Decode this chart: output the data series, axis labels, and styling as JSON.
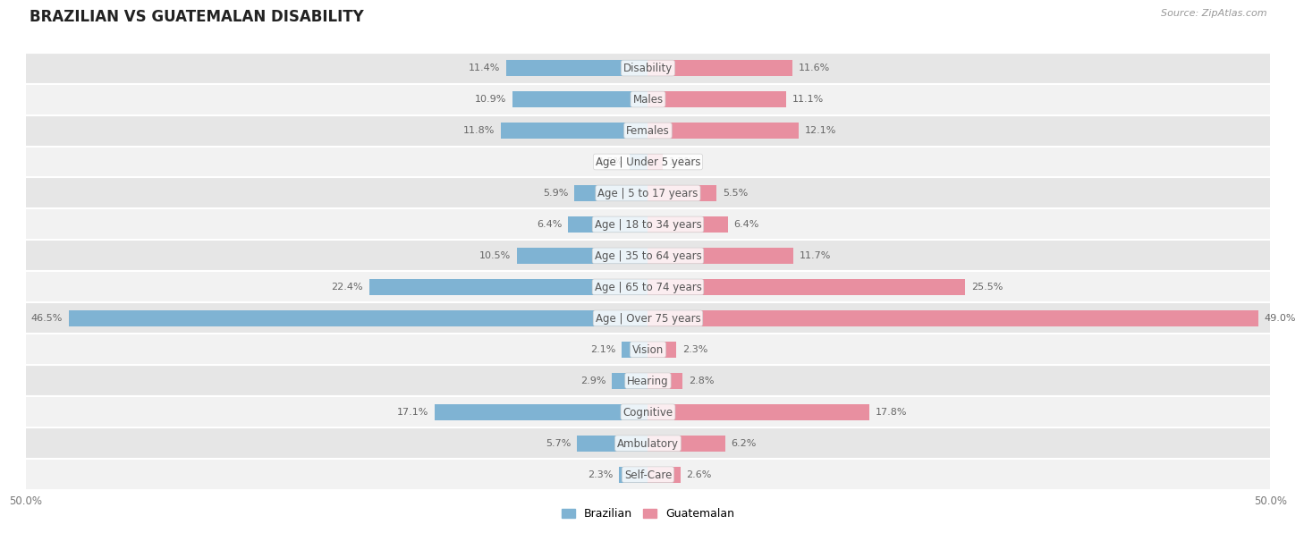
{
  "title": "BRAZILIAN VS GUATEMALAN DISABILITY",
  "source": "Source: ZipAtlas.com",
  "categories": [
    "Disability",
    "Males",
    "Females",
    "Age | Under 5 years",
    "Age | 5 to 17 years",
    "Age | 18 to 34 years",
    "Age | 35 to 64 years",
    "Age | 65 to 74 years",
    "Age | Over 75 years",
    "Vision",
    "Hearing",
    "Cognitive",
    "Ambulatory",
    "Self-Care"
  ],
  "brazilian": [
    11.4,
    10.9,
    11.8,
    1.5,
    5.9,
    6.4,
    10.5,
    22.4,
    46.5,
    2.1,
    2.9,
    17.1,
    5.7,
    2.3
  ],
  "guatemalan": [
    11.6,
    11.1,
    12.1,
    1.2,
    5.5,
    6.4,
    11.7,
    25.5,
    49.0,
    2.3,
    2.8,
    17.8,
    6.2,
    2.6
  ],
  "max_val": 50.0,
  "blue_color": "#7fb3d3",
  "pink_color": "#e88fa0",
  "bar_height": 0.52,
  "row_color_light": "#f2f2f2",
  "row_color_dark": "#e6e6e6",
  "title_fontsize": 12,
  "label_fontsize": 8.5,
  "value_fontsize": 8.0,
  "tick_fontsize": 8.5
}
